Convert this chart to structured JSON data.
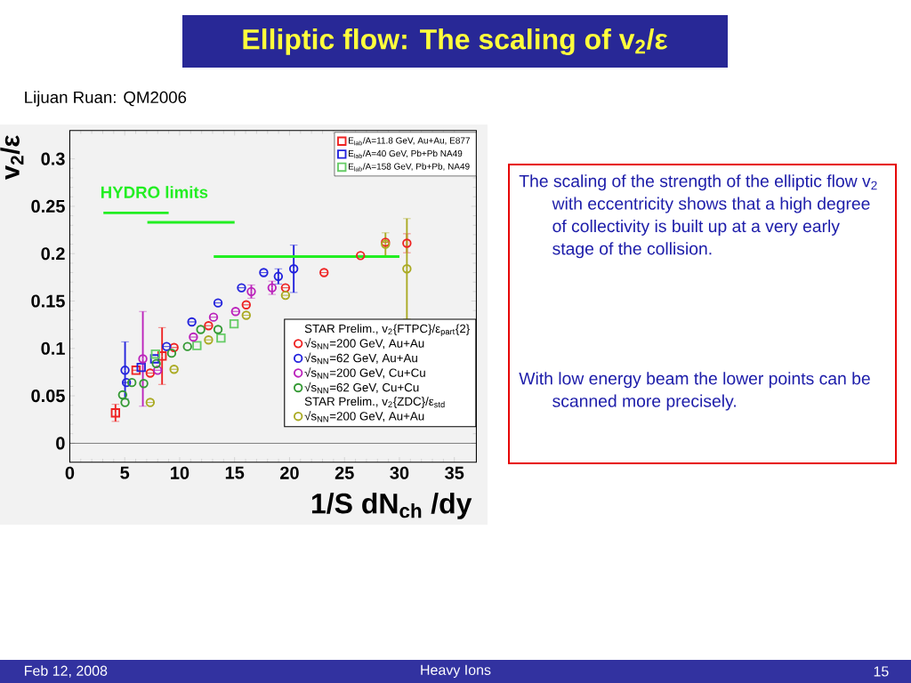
{
  "chart_data": {
    "type": "scatter",
    "title": "**Elliptic flow:** The scaling of v$_{2}$/ε",
    "subtitle": "Lijuan Ruan: QM2006",
    "xlabel": "1/S dN$_{ch}$ /dy",
    "ylabel": "v$_{2}$/ε",
    "legend_title": "STAR Prelim., v$_{2}${FTPC}/ε$_{part}${2}",
    "xlim": [
      0,
      37
    ],
    "ylim": [
      -0.02,
      0.33
    ],
    "xticks": [
      0,
      5,
      10,
      15,
      20,
      25,
      30,
      35
    ],
    "yticks": [
      0,
      0.05,
      0.1,
      0.15,
      0.2,
      0.25,
      0.3
    ],
    "ref_lines": [
      {
        "axis": "y",
        "value": 0,
        "color": "#000000"
      }
    ],
    "legend": "right",
    "series": [
      {
        "name": "E$_{lab}$/A=11.8 GeV, Au+Au, E877",
        "color": "#ee2222",
        "marker": "square",
        "x": [
          4.16,
          6.03,
          8.4
        ],
        "values": [
          0.032,
          0.077,
          0.092
        ],
        "errors": [
          0.009,
          null,
          0.03
        ]
      },
      {
        "name": "E$_{lab}$/A=40 GeV, Pb+Pb NA49",
        "color": "#2222dd",
        "marker": "square",
        "x": [
          6.5,
          7.73
        ],
        "values": [
          0.08,
          0.089
        ]
      },
      {
        "name": "E$_{lab}$/A=158 GeV, Pb+Pb, NA49",
        "color": "#66cc66",
        "marker": "square",
        "x": [
          7.8,
          11.57,
          13.76,
          14.95
        ],
        "values": [
          0.094,
          0.103,
          0.111,
          0.126
        ]
      },
      {
        "name": "√s$_{NN}$=200 GeV, Au+Au",
        "color": "#ee2222",
        "marker": "circle",
        "x": [
          7.32,
          9.49,
          12.63,
          16.06,
          19.63,
          23.14,
          26.46,
          28.73,
          30.68
        ],
        "values": [
          0.074,
          0.101,
          0.124,
          0.146,
          0.164,
          0.18,
          0.198,
          0.212,
          0.211
        ],
        "errors": [
          null,
          null,
          null,
          null,
          null,
          null,
          null,
          null,
          0.01
        ]
      },
      {
        "name": "√s$_{NN}$=62 GeV, Au+Au",
        "color": "#2222dd",
        "marker": "circle",
        "x": [
          5.03,
          5.16,
          8.81,
          11.11,
          13.49,
          15.63,
          17.65,
          18.98,
          20.38
        ],
        "values": [
          0.077,
          0.064,
          0.102,
          0.128,
          0.148,
          0.164,
          0.18,
          0.176,
          0.184
        ],
        "errors": [
          0.03,
          null,
          null,
          null,
          null,
          null,
          null,
          0.008,
          0.025
        ]
      },
      {
        "name": "√s$_{NN}$=200 GeV, Cu+Cu",
        "color": "#bb22bb",
        "marker": "circle",
        "x": [
          6.65,
          8.0,
          11.25,
          13.08,
          15.09,
          16.52,
          18.41
        ],
        "values": [
          0.089,
          0.077,
          0.112,
          0.133,
          0.139,
          0.16,
          0.164
        ],
        "errors": [
          0.05,
          null,
          null,
          null,
          null,
          0.007,
          0.007
        ]
      },
      {
        "name": "√s$_{NN}$=62 GeV, Cu+Cu",
        "color": "#339933",
        "marker": "circle",
        "x": [
          4.81,
          5.03,
          5.65,
          6.73,
          7.87,
          9.27,
          10.71,
          11.92,
          13.49
        ],
        "values": [
          0.051,
          0.043,
          0.064,
          0.063,
          0.084,
          0.095,
          0.102,
          0.12,
          0.12
        ]
      },
      {
        "name": "√s$_{NN}$=200 GeV, Au+Au",
        "color": "#aaaa22",
        "marker": "circle",
        "x": [
          7.32,
          9.49,
          12.63,
          16.06,
          19.63,
          28.73,
          30.68
        ],
        "values": [
          0.043,
          0.078,
          0.109,
          0.135,
          0.156,
          0.21,
          0.184
        ],
        "errors": [
          null,
          null,
          null,
          null,
          null,
          0.012,
          0.053
        ]
      },
      {
        "type": "line",
        "color": "#22ee22",
        "marker": "none",
        "x": [
          3.06,
          9.0
        ],
        "values": [
          0.243,
          0.243
        ]
      },
      {
        "type": "line",
        "color": "#22ee22",
        "marker": "none",
        "x": [
          7.06,
          15.0
        ],
        "values": [
          0.233,
          0.233
        ]
      },
      {
        "type": "line",
        "color": "#22ee22",
        "marker": "none",
        "x": [
          13.1,
          30.0
        ],
        "values": [
          0.197,
          0.197
        ]
      }
    ],
    "annotations": [
      "STAR Prelim., v$_{2}${ZDC}/ε$_{std}$",
      "HYDRO  limits",
      "The scaling of the strength of the elliptic flow v$_{2}$ with eccentricity shows that a high degree of collectivity is built up at a very early stage of the collision.",
      "With low energy beam the lower points can be scanned more precisely.",
      "Feb 12, 2008",
      "Heavy Ions",
      "15"
    ]
  }
}
